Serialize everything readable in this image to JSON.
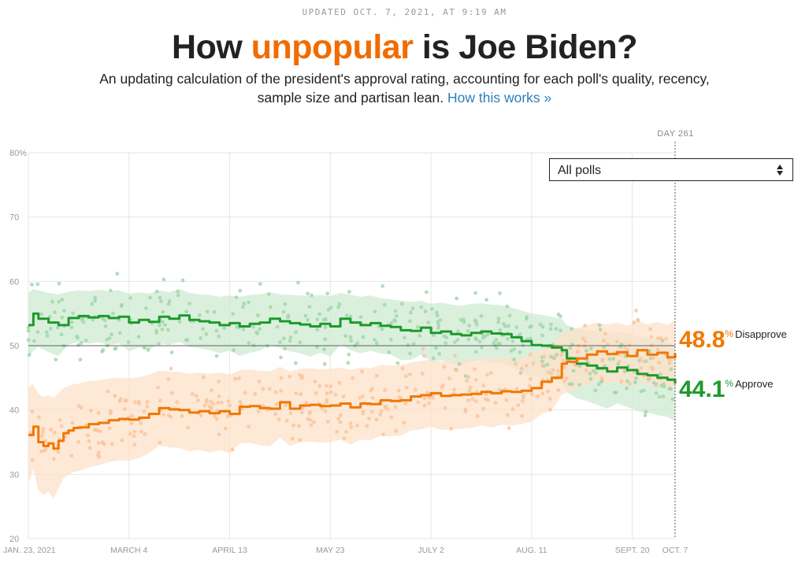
{
  "header": {
    "updated": "UPDATED OCT. 7, 2021, AT 9:19 AM",
    "title_pre": "How ",
    "title_accent": "unpopular",
    "title_post": " is Joe Biden?",
    "subtitle": "An updating calculation of the president's approval rating, accounting for each poll's quality, recency, sample size and partisan lean.",
    "link": "How this works »"
  },
  "filter": {
    "selected": "All polls"
  },
  "day_label": "DAY 261",
  "readouts": {
    "disapprove": {
      "value": "48.8",
      "pct": "%",
      "label": "Disapprove"
    },
    "approve": {
      "value": "44.1",
      "pct": "%",
      "label": "Approve"
    }
  },
  "colors": {
    "approve": "#1d9a2b",
    "disapprove": "#f07800",
    "approve_band": "#cdebd2",
    "disapprove_band": "#fde0c8"
  },
  "chart_data": {
    "type": "line",
    "title": "How unpopular is Joe Biden?",
    "xlabel": "",
    "ylabel": "",
    "x_unit": "days since Jan. 23, 2021",
    "xlim": [
      0,
      257
    ],
    "ylim": [
      20,
      80
    ],
    "y_ticks": [
      20,
      30,
      40,
      50,
      60,
      70,
      80
    ],
    "y_tick_labels": [
      "20",
      "30",
      "40",
      "50",
      "60",
      "70",
      "80%"
    ],
    "x_ticks": [
      {
        "day": 0,
        "label": "JAN. 23, 2021"
      },
      {
        "day": 40,
        "label": "MARCH 4"
      },
      {
        "day": 80,
        "label": "APRIL 13"
      },
      {
        "day": 120,
        "label": "MAY 23"
      },
      {
        "day": 160,
        "label": "JULY 2"
      },
      {
        "day": 200,
        "label": "AUG. 11"
      },
      {
        "day": 240,
        "label": "SEPT. 20"
      },
      {
        "day": 257,
        "label": "OCT. 7"
      }
    ],
    "reference_line": 50,
    "series": [
      {
        "name": "Approve",
        "x": [
          0,
          2,
          4,
          8,
          12,
          16,
          20,
          24,
          28,
          32,
          36,
          40,
          44,
          48,
          52,
          56,
          60,
          64,
          68,
          72,
          76,
          80,
          84,
          88,
          92,
          96,
          100,
          104,
          108,
          112,
          116,
          120,
          124,
          128,
          132,
          136,
          140,
          144,
          148,
          152,
          156,
          160,
          164,
          168,
          172,
          176,
          180,
          184,
          188,
          192,
          196,
          200,
          204,
          208,
          212,
          214,
          218,
          222,
          226,
          230,
          234,
          238,
          242,
          246,
          250,
          254,
          257
        ],
        "values": [
          53.2,
          55.0,
          54.2,
          53.6,
          53.2,
          54.3,
          54.6,
          54.4,
          54.6,
          54.3,
          54.5,
          53.6,
          54.0,
          53.7,
          54.5,
          54.2,
          54.7,
          54.0,
          53.8,
          53.6,
          53.2,
          53.5,
          53.0,
          53.4,
          53.6,
          54.2,
          53.8,
          53.5,
          53.3,
          53.0,
          53.4,
          53.0,
          54.2,
          53.6,
          53.2,
          53.5,
          53.1,
          52.9,
          52.4,
          52.3,
          52.8,
          52.0,
          52.2,
          51.8,
          51.6,
          52.0,
          52.2,
          51.9,
          51.8,
          51.3,
          50.7,
          50.1,
          50.0,
          49.7,
          49.3,
          48.0,
          47.2,
          46.9,
          46.5,
          46.0,
          46.6,
          46.2,
          45.6,
          45.4,
          45.0,
          44.7,
          44.1
        ],
        "band_upper": [
          58.2,
          58.8,
          58.6,
          58.2,
          58.0,
          58.4,
          58.6,
          58.5,
          58.7,
          58.5,
          58.6,
          58.1,
          58.3,
          58.1,
          58.6,
          58.3,
          58.8,
          58.2,
          58.0,
          57.9,
          57.6,
          57.8,
          57.6,
          57.9,
          58.0,
          58.3,
          58.0,
          57.9,
          57.8,
          57.7,
          57.9,
          57.7,
          58.2,
          57.9,
          57.6,
          57.8,
          57.4,
          57.2,
          57.0,
          56.8,
          57.0,
          56.5,
          56.7,
          56.4,
          56.2,
          56.5,
          56.6,
          56.4,
          56.3,
          55.9,
          55.5,
          55.0,
          54.8,
          54.5,
          54.2,
          53.2,
          52.6,
          52.4,
          52.2,
          51.8,
          52.2,
          51.9,
          51.4,
          51.2,
          50.8,
          50.5,
          49.9
        ],
        "band_lower": [
          48.2,
          49.2,
          49.8,
          49.0,
          48.4,
          50.2,
          50.6,
          50.3,
          50.5,
          50.1,
          50.4,
          49.1,
          49.7,
          49.3,
          50.4,
          50.1,
          50.6,
          49.8,
          49.6,
          49.3,
          48.8,
          49.2,
          48.4,
          48.9,
          49.2,
          50.1,
          49.6,
          49.1,
          48.8,
          48.3,
          48.9,
          48.3,
          50.2,
          49.3,
          48.8,
          49.2,
          48.8,
          48.6,
          47.8,
          47.8,
          48.6,
          47.5,
          47.7,
          47.2,
          47.0,
          47.5,
          47.8,
          47.4,
          47.3,
          46.7,
          45.9,
          45.2,
          45.2,
          44.9,
          44.4,
          42.8,
          41.8,
          41.4,
          40.8,
          40.2,
          41.0,
          40.5,
          39.8,
          39.6,
          39.2,
          38.9,
          38.3
        ]
      },
      {
        "name": "Disapprove",
        "x": [
          0,
          2,
          4,
          6,
          8,
          10,
          12,
          14,
          16,
          18,
          20,
          24,
          28,
          32,
          36,
          40,
          44,
          48,
          52,
          56,
          60,
          64,
          68,
          72,
          76,
          80,
          84,
          88,
          92,
          96,
          100,
          104,
          108,
          112,
          116,
          120,
          124,
          128,
          132,
          136,
          140,
          144,
          148,
          152,
          156,
          160,
          164,
          168,
          172,
          176,
          180,
          184,
          188,
          192,
          196,
          200,
          204,
          208,
          212,
          214,
          218,
          222,
          226,
          230,
          234,
          238,
          242,
          246,
          250,
          254,
          257
        ],
        "values": [
          36.1,
          37.4,
          35.0,
          34.4,
          34.8,
          34.0,
          35.2,
          36.4,
          36.8,
          37.2,
          37.3,
          37.8,
          38.0,
          38.4,
          38.6,
          38.5,
          38.8,
          39.4,
          40.3,
          40.1,
          40.0,
          39.6,
          39.8,
          39.5,
          39.8,
          39.4,
          40.5,
          40.6,
          40.3,
          40.2,
          41.2,
          40.2,
          40.7,
          40.8,
          40.6,
          40.7,
          41.0,
          40.4,
          41.0,
          40.9,
          41.5,
          41.4,
          41.5,
          42.1,
          42.3,
          42.6,
          42.2,
          42.3,
          42.4,
          42.5,
          42.8,
          42.6,
          42.9,
          42.8,
          43.0,
          43.4,
          44.4,
          45.0,
          47.2,
          47.5,
          48.0,
          48.6,
          49.1,
          48.7,
          49.0,
          48.4,
          49.3,
          48.6,
          48.9,
          48.2,
          48.8
        ],
        "band_upper": [
          43.5,
          44.0,
          42.5,
          42.0,
          42.3,
          41.8,
          42.6,
          43.4,
          43.7,
          44.0,
          44.1,
          44.5,
          44.6,
          44.9,
          45.0,
          44.9,
          45.1,
          45.5,
          46.1,
          46.0,
          45.9,
          45.6,
          45.8,
          45.6,
          45.8,
          45.5,
          46.2,
          46.3,
          46.1,
          46.0,
          46.7,
          46.0,
          46.4,
          46.5,
          46.3,
          46.4,
          46.6,
          46.2,
          46.6,
          46.5,
          47.0,
          46.9,
          47.0,
          47.4,
          47.6,
          47.8,
          47.5,
          47.6,
          47.7,
          47.8,
          48.0,
          47.9,
          48.1,
          48.0,
          48.2,
          48.6,
          49.4,
          50.0,
          52.0,
          52.3,
          52.7,
          53.2,
          53.6,
          53.3,
          53.6,
          53.1,
          53.9,
          53.3,
          53.7,
          53.2,
          54.0
        ],
        "band_lower": [
          28.7,
          30.8,
          27.5,
          26.8,
          27.3,
          26.2,
          27.8,
          29.4,
          29.9,
          30.4,
          30.5,
          31.1,
          31.4,
          31.9,
          32.2,
          32.1,
          32.5,
          33.3,
          34.5,
          34.2,
          34.1,
          33.6,
          33.8,
          33.4,
          33.8,
          33.3,
          34.8,
          34.9,
          34.5,
          34.4,
          35.7,
          34.4,
          35.0,
          35.1,
          34.9,
          35.0,
          35.4,
          34.6,
          35.4,
          35.3,
          36.0,
          35.9,
          36.0,
          36.8,
          37.0,
          37.4,
          36.9,
          37.0,
          37.1,
          37.2,
          37.6,
          37.3,
          37.7,
          37.6,
          37.8,
          38.2,
          39.4,
          40.0,
          42.4,
          42.7,
          43.3,
          44.0,
          44.6,
          44.1,
          44.4,
          43.7,
          44.7,
          43.9,
          44.1,
          43.2,
          43.6
        ]
      }
    ]
  }
}
